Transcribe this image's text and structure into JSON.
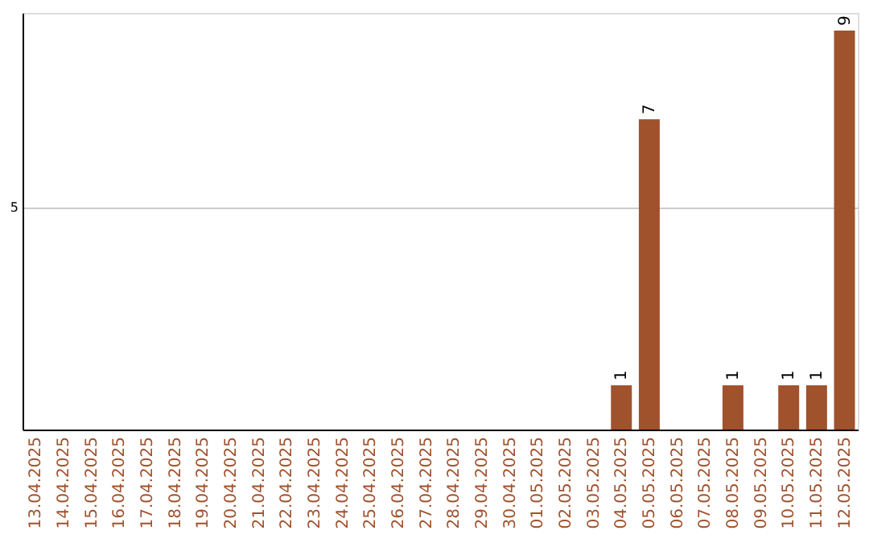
{
  "chart_data": {
    "type": "bar",
    "categories": [
      "13.04.2025",
      "14.04.2025",
      "15.04.2025",
      "16.04.2025",
      "17.04.2025",
      "18.04.2025",
      "19.04.2025",
      "20.04.2025",
      "21.04.2025",
      "22.04.2025",
      "23.04.2025",
      "24.04.2025",
      "25.04.2025",
      "26.04.2025",
      "27.04.2025",
      "28.04.2025",
      "29.04.2025",
      "30.04.2025",
      "01.05.2025",
      "02.05.2025",
      "03.05.2025",
      "04.05.2025",
      "05.05.2025",
      "06.05.2025",
      "07.05.2025",
      "08.05.2025",
      "09.05.2025",
      "10.05.2025",
      "11.05.2025",
      "12.05.2025"
    ],
    "values": [
      null,
      null,
      null,
      null,
      null,
      null,
      null,
      null,
      null,
      null,
      null,
      null,
      null,
      null,
      null,
      null,
      null,
      null,
      null,
      null,
      null,
      1,
      7,
      null,
      null,
      1,
      null,
      1,
      1,
      9
    ],
    "data_labels": true,
    "color": "#a0522d",
    "ylim": [
      0,
      9.4
    ],
    "yticks": [
      5
    ],
    "grid": "y"
  }
}
